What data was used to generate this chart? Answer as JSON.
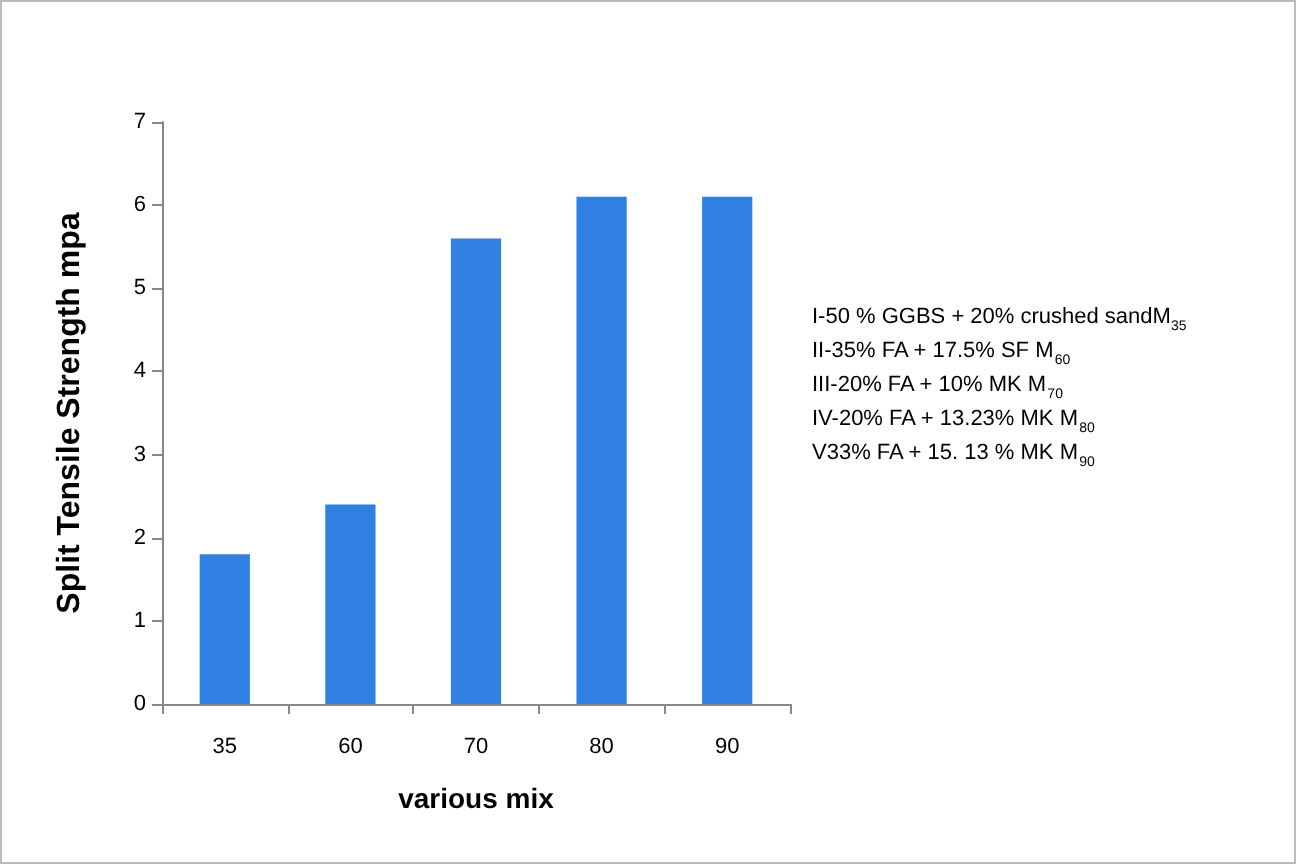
{
  "chart_data": {
    "type": "bar",
    "xlabel": "various mix",
    "ylabel": "Split Tensile Strength mpa",
    "categories": [
      "35",
      "60",
      "70",
      "80",
      "90"
    ],
    "values": [
      1.8,
      2.4,
      5.6,
      6.1,
      6.1
    ],
    "color": "#2f80e0",
    "ylim": [
      0,
      7
    ],
    "yticks": [
      0,
      1,
      2,
      3,
      4,
      5,
      6,
      7
    ],
    "grid": false,
    "annotations": [
      "I-50 % GGBS + 20% crushed sandM$_{35}$",
      "II-35% FA + 17.5% SF M$_{60}$",
      "III-20% FA + 10% MK M$_{70}$",
      "IV-20% FA + 13.23% MK M$_{80}$",
      "V33% FA + 15. 13 % MK M$_{90}$"
    ]
  }
}
